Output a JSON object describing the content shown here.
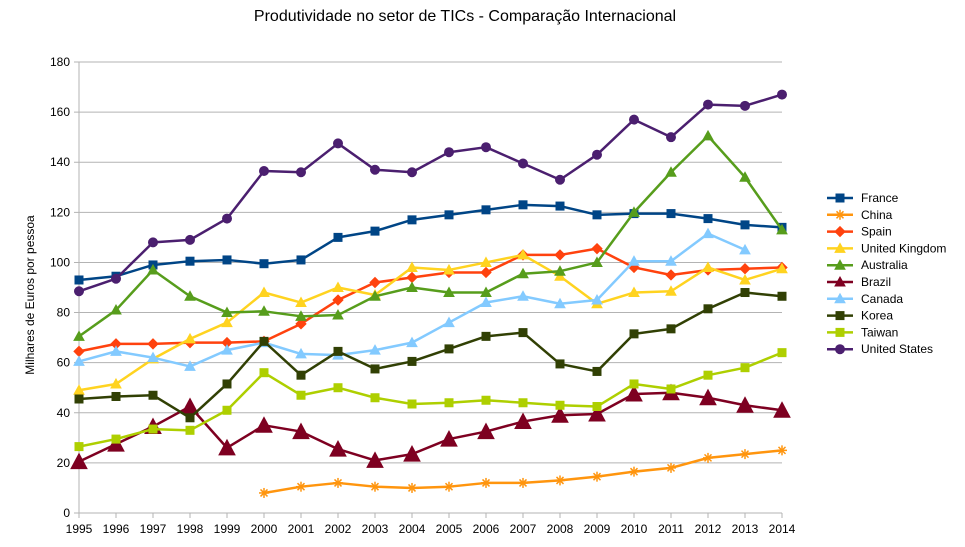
{
  "chart_data": {
    "type": "line",
    "title": "Produtividade no setor de TICs - Comparação Internacional",
    "xlabel": "",
    "ylabel": "Milhares de Euros por pessoa",
    "ylim": [
      0,
      180
    ],
    "yticks": [
      0,
      20,
      40,
      60,
      80,
      100,
      120,
      140,
      160,
      180
    ],
    "x": [
      "1995",
      "1996",
      "1997",
      "1998",
      "1999",
      "2000",
      "2001",
      "2002",
      "2003",
      "2004",
      "2005",
      "2006",
      "2007",
      "2008",
      "2009",
      "2010",
      "2011",
      "2012",
      "2013",
      "2014"
    ],
    "grid": "horizontal",
    "legend_position": "right",
    "series": [
      {
        "name": "France",
        "color": "#004586",
        "marker": "square",
        "values": [
          93,
          94.5,
          99,
          100.5,
          101,
          99.5,
          101,
          110,
          112.5,
          117,
          119,
          121,
          123,
          122.5,
          119,
          119.5,
          119.5,
          117.5,
          115,
          114
        ]
      },
      {
        "name": "China",
        "color": "#ff950e",
        "marker": "star",
        "values": [
          null,
          null,
          null,
          null,
          null,
          8,
          10.5,
          12,
          10.5,
          10,
          10.5,
          12,
          12,
          13,
          14.5,
          16.5,
          18,
          22,
          23.5,
          25
        ]
      },
      {
        "name": "Spain",
        "color": "#ff420e",
        "marker": "diamond",
        "values": [
          64.5,
          67.5,
          67.5,
          68,
          68,
          68.5,
          75.5,
          85,
          92,
          94,
          96,
          96,
          103,
          103,
          105.5,
          98,
          95,
          97,
          97.5,
          98
        ]
      },
      {
        "name": "United Kingdom",
        "color": "#ffd320",
        "marker": "triangle",
        "values": [
          49,
          51.5,
          61.5,
          69.5,
          76,
          88,
          84,
          90,
          87,
          98,
          97,
          100,
          103,
          94.5,
          83.5,
          88,
          88.5,
          98,
          93,
          97.5
        ]
      },
      {
        "name": "Australia",
        "color": "#579d1c",
        "marker": "triangle",
        "values": [
          70.5,
          81,
          97,
          86.5,
          80,
          80.5,
          78.5,
          79,
          86.5,
          90,
          88,
          88,
          95.5,
          96.5,
          100,
          120,
          136,
          150.5,
          134,
          113
        ]
      },
      {
        "name": "Brazil",
        "color": "#7e0021",
        "marker": "triangle",
        "values": [
          20.5,
          27.5,
          34.5,
          42.5,
          26,
          35,
          32.5,
          25.5,
          21,
          23.5,
          29.5,
          32.5,
          36.5,
          39,
          39.5,
          47.5,
          48,
          46,
          43,
          41
        ]
      },
      {
        "name": "Canada",
        "color": "#83caff",
        "marker": "triangle",
        "values": [
          60.5,
          64.5,
          62,
          58.5,
          65,
          68,
          63.5,
          63,
          65,
          68,
          76,
          84,
          86.5,
          83.5,
          85,
          100.5,
          100.5,
          111.5,
          105,
          null
        ]
      },
      {
        "name": "Korea",
        "color": "#314004",
        "marker": "square",
        "values": [
          45.5,
          46.5,
          47,
          38,
          51.5,
          68.5,
          55,
          64.5,
          57.5,
          60.5,
          65.5,
          70.5,
          72,
          59.5,
          56.5,
          71.5,
          73.5,
          81.5,
          88,
          86.5
        ]
      },
      {
        "name": "Taiwan",
        "color": "#aecf00",
        "marker": "square",
        "values": [
          26.5,
          29.5,
          33.5,
          33,
          41,
          56,
          47,
          50,
          46,
          43.5,
          44,
          45,
          44,
          43,
          42.5,
          51.5,
          49.5,
          55,
          58,
          64
        ]
      },
      {
        "name": "United States",
        "color": "#4b1f6f",
        "marker": "circle",
        "values": [
          88.5,
          93.5,
          108,
          109,
          117.5,
          136.5,
          136,
          147.5,
          137,
          136,
          144,
          146,
          139.5,
          133,
          143,
          157,
          150,
          163,
          162.5,
          167
        ]
      }
    ]
  }
}
